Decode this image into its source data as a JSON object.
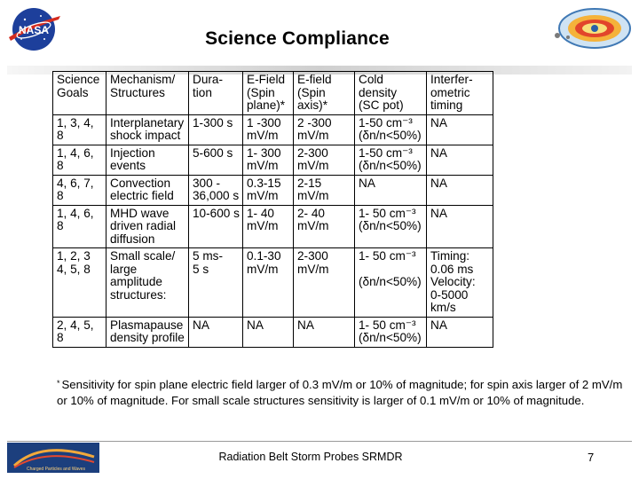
{
  "slide": {
    "title": "Science Compliance",
    "footer_text": "Radiation Belt Storm Probes SRMDR",
    "page_number": "7"
  },
  "logos": {
    "nasa_text": "NASA",
    "footer_logo_text": "Charged Particles and Waves"
  },
  "table": {
    "headers": [
      "Science\nGoals",
      "Mechanism/\nStructures",
      "Dura-\ntion",
      "E-Field\n(Spin\nplane)*",
      "E-field\n(Spin\naxis)*",
      "Cold\ndensity\n(SC pot)",
      "Interfer-\nometric\ntiming"
    ],
    "rows": [
      [
        "1, 3, 4, 8",
        "Interplanetary\nshock impact",
        "1-300 s",
        "1 -300\nmV/m",
        "2 -300\nmV/m",
        "1-50 cm⁻³\n(δn/n<50%)",
        "NA"
      ],
      [
        "1, 4, 6, 8",
        "Injection events",
        "5-600 s",
        "1- 300\nmV/m",
        "2-300\nmV/m",
        "1-50 cm⁻³\n(δn/n<50%)",
        "NA"
      ],
      [
        "4, 6, 7, 8",
        "Convection\nelectric field",
        "300 -\n36,000 s",
        "0.3-15\nmV/m",
        "2-15\nmV/m",
        "NA",
        "NA"
      ],
      [
        "1, 4, 6, 8",
        "MHD wave\ndriven radial\ndiffusion",
        "10-600 s",
        "1- 40\nmV/m",
        "2- 40\nmV/m",
        "1- 50 cm⁻³\n(δn/n<50%)",
        "NA"
      ],
      [
        "1, 2, 3\n4, 5, 8",
        "Small scale/\nlarge\namplitude\nstructures:",
        "5 ms-\n5 s",
        "0.1-30\nmV/m",
        "2-300\nmV/m",
        "1- 50 cm⁻³\n\n(δn/n<50%)",
        "Timing:\n0.06 ms\nVelocity:\n0-5000 km/s"
      ],
      [
        "2, 4, 5, 8",
        "Plasmapause\ndensity profile",
        "NA",
        "NA",
        "NA",
        "1- 50 cm⁻³\n(δn/n<50%)",
        "NA"
      ]
    ],
    "col_widths": [
      60,
      93,
      61,
      57,
      69,
      81,
      75
    ]
  },
  "footnote": {
    "marker": "*",
    "text": "Sensitivity for spin plane electric field larger of 0.3 mV/m or 10% of magnitude; for spin axis larger of 2 mV/m or 10% of magnitude. For small scale structures sensitivity is larger of 0.1 mV/m or 10% of magnitude."
  }
}
